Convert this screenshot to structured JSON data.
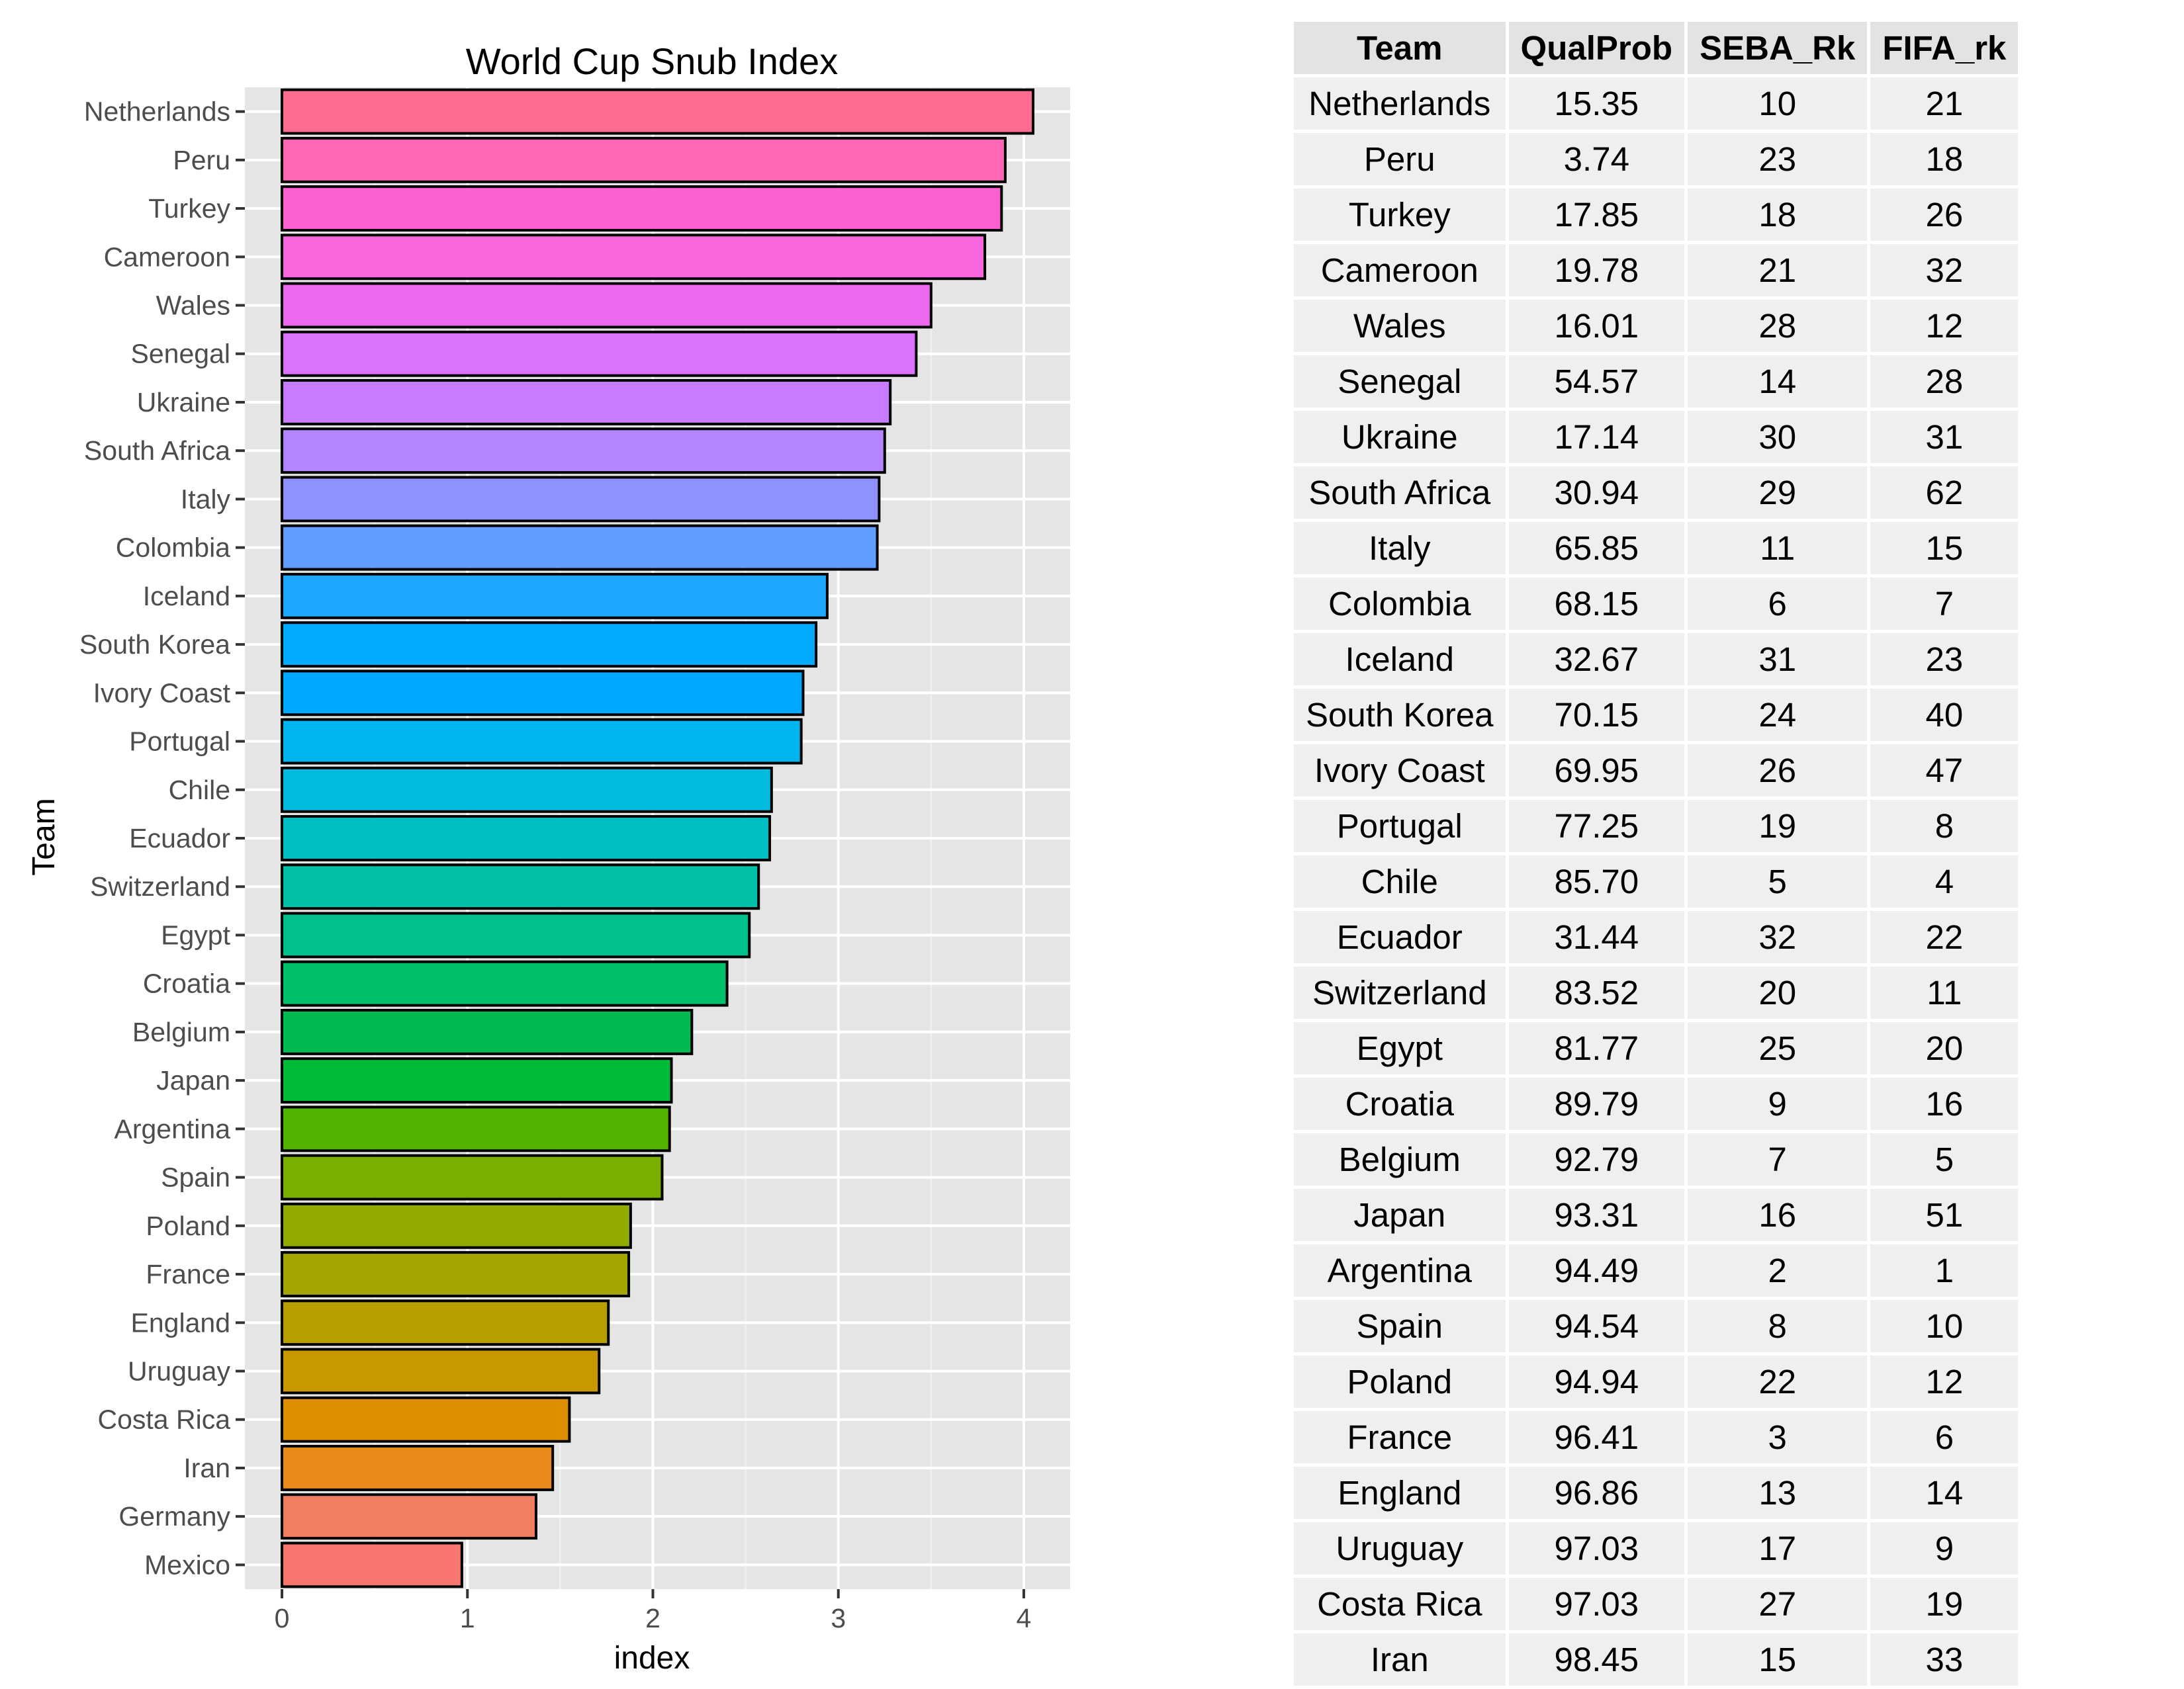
{
  "chart_data": {
    "type": "bar",
    "orientation": "horizontal",
    "title": "World Cup Snub Index",
    "xlabel": "index",
    "ylabel": "Team",
    "xlim": [
      -0.2,
      4.25
    ],
    "xticks": [
      0,
      1,
      2,
      3,
      4
    ],
    "grid": true,
    "categories": [
      "Netherlands",
      "Peru",
      "Turkey",
      "Cameroon",
      "Wales",
      "Senegal",
      "Ukraine",
      "South Africa",
      "Italy",
      "Colombia",
      "Iceland",
      "South Korea",
      "Ivory Coast",
      "Portugal",
      "Chile",
      "Ecuador",
      "Switzerland",
      "Egypt",
      "Croatia",
      "Belgium",
      "Japan",
      "Argentina",
      "Spain",
      "Poland",
      "France",
      "England",
      "Uruguay",
      "Costa Rica",
      "Iran",
      "Germany",
      "Mexico"
    ],
    "values": [
      4.05,
      3.9,
      3.88,
      3.79,
      3.5,
      3.42,
      3.28,
      3.25,
      3.22,
      3.21,
      2.94,
      2.88,
      2.81,
      2.8,
      2.64,
      2.63,
      2.57,
      2.52,
      2.4,
      2.21,
      2.1,
      2.09,
      2.05,
      1.88,
      1.87,
      1.76,
      1.71,
      1.55,
      1.46,
      1.37,
      0.97
    ],
    "colors": [
      "#f8766d",
      "#f07e63",
      "#e98a1b",
      "#dc8e00",
      "#c99800",
      "#b79f00",
      "#a4a600",
      "#93aa00",
      "#7aaf00",
      "#53b400",
      "#00ba38",
      "#00bc50",
      "#00c06b",
      "#00c08b",
      "#00c1a7",
      "#00bfc4",
      "#00bbdb",
      "#00b4ef",
      "#00a9ff",
      "#00aafe",
      "#1ea7ff",
      "#619cff",
      "#8f91ff",
      "#b385ff",
      "#c77cff",
      "#db72fb",
      "#ec69ef",
      "#f766dc",
      "#fd61d1",
      "#ff67b5",
      "#ff6c90"
    ]
  },
  "table": {
    "columns": [
      "Team",
      "QualProb",
      "SEBA_Rk",
      "FIFA_rk"
    ],
    "rows": [
      [
        "Netherlands",
        "15.35",
        "10",
        "21"
      ],
      [
        "Peru",
        "3.74",
        "23",
        "18"
      ],
      [
        "Turkey",
        "17.85",
        "18",
        "26"
      ],
      [
        "Cameroon",
        "19.78",
        "21",
        "32"
      ],
      [
        "Wales",
        "16.01",
        "28",
        "12"
      ],
      [
        "Senegal",
        "54.57",
        "14",
        "28"
      ],
      [
        "Ukraine",
        "17.14",
        "30",
        "31"
      ],
      [
        "South Africa",
        "30.94",
        "29",
        "62"
      ],
      [
        "Italy",
        "65.85",
        "11",
        "15"
      ],
      [
        "Colombia",
        "68.15",
        "6",
        "7"
      ],
      [
        "Iceland",
        "32.67",
        "31",
        "23"
      ],
      [
        "South Korea",
        "70.15",
        "24",
        "40"
      ],
      [
        "Ivory Coast",
        "69.95",
        "26",
        "47"
      ],
      [
        "Portugal",
        "77.25",
        "19",
        "8"
      ],
      [
        "Chile",
        "85.70",
        "5",
        "4"
      ],
      [
        "Ecuador",
        "31.44",
        "32",
        "22"
      ],
      [
        "Switzerland",
        "83.52",
        "20",
        "11"
      ],
      [
        "Egypt",
        "81.77",
        "25",
        "20"
      ],
      [
        "Croatia",
        "89.79",
        "9",
        "16"
      ],
      [
        "Belgium",
        "92.79",
        "7",
        "5"
      ],
      [
        "Japan",
        "93.31",
        "16",
        "51"
      ],
      [
        "Argentina",
        "94.49",
        "2",
        "1"
      ],
      [
        "Spain",
        "94.54",
        "8",
        "10"
      ],
      [
        "Poland",
        "94.94",
        "22",
        "12"
      ],
      [
        "France",
        "96.41",
        "3",
        "6"
      ],
      [
        "England",
        "96.86",
        "13",
        "14"
      ],
      [
        "Uruguay",
        "97.03",
        "17",
        "9"
      ],
      [
        "Costa Rica",
        "97.03",
        "27",
        "19"
      ],
      [
        "Iran",
        "98.45",
        "15",
        "33"
      ]
    ]
  }
}
